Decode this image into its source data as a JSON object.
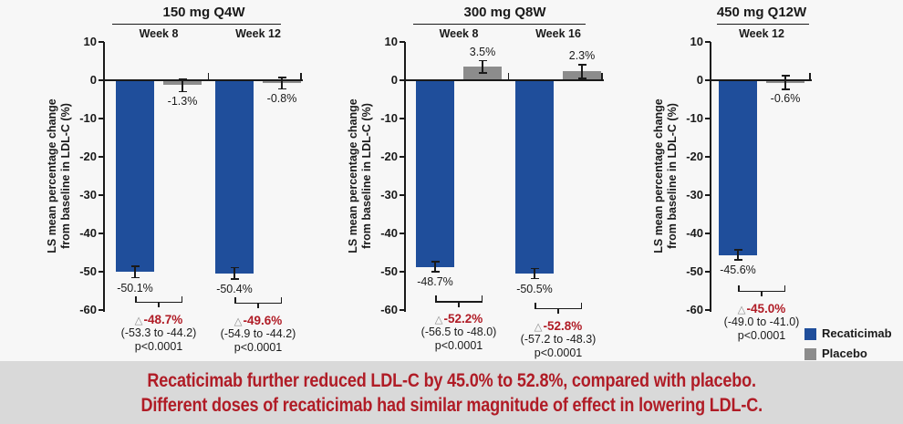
{
  "banner": {
    "line1": "Recaticimab further reduced LDL-C by 45.0% to 52.8%, compared with placebo.",
    "line2": "Different doses of recaticimab had similar magnitude of effect in lowering LDL-C."
  },
  "colors": {
    "recaticimab": "#1F4E9B",
    "placebo": "#8C8C8C",
    "delta_red": "#B01C26",
    "banner_bg": "#D9D9D9",
    "banner_text": "#B01C26",
    "axis": "#1A1A1A",
    "triangle_gray": "#8F8F8F",
    "background": "#F7F7F7"
  },
  "delta_prefix": "△",
  "chart_data": {
    "type": "bar",
    "ylabel": "LS mean percentage change from baseline in LDL-C (%)",
    "ylabel_lines": [
      "LS mean percentage change",
      "from baseline in LDL-C (%)"
    ],
    "unit": "%",
    "ylim": [
      -60,
      10
    ],
    "yticks": [
      10,
      0,
      -10,
      -20,
      -30,
      -40,
      -50,
      -60
    ],
    "grid": false,
    "legend": {
      "position": "bottom-right",
      "items": [
        {
          "label": "Recaticimab",
          "color": "#1F4E9B"
        },
        {
          "label": "Placebo",
          "color": "#8C8C8C"
        }
      ]
    },
    "panels": [
      {
        "title": "150 mg Q4W",
        "categories": [
          "Week 8",
          "Week 12"
        ],
        "series": [
          {
            "name": "Recaticimab",
            "values": [
              -50.1,
              -50.4
            ],
            "labels": [
              "-50.1%",
              "-50.4%"
            ],
            "errors": [
              1.5,
              1.5
            ]
          },
          {
            "name": "Placebo",
            "values": [
              -1.3,
              -0.8
            ],
            "labels": [
              "-1.3%",
              "-0.8%"
            ],
            "errors": [
              1.7,
              1.5
            ]
          }
        ],
        "comparisons": [
          {
            "delta": "-48.7%",
            "ci": "(-53.3 to -44.2)",
            "p": "p<0.0001"
          },
          {
            "delta": "-49.6%",
            "ci": "(-54.9 to -44.2)",
            "p": "p<0.0001"
          }
        ]
      },
      {
        "title": "300 mg Q8W",
        "categories": [
          "Week 8",
          "Week 16"
        ],
        "series": [
          {
            "name": "Recaticimab",
            "values": [
              -48.7,
              -50.5
            ],
            "labels": [
              "-48.7%",
              "-50.5%"
            ],
            "errors": [
              1.3,
              1.3
            ]
          },
          {
            "name": "Placebo",
            "values": [
              3.5,
              2.3
            ],
            "labels": [
              "3.5%",
              "2.3%"
            ],
            "errors": [
              1.6,
              1.8
            ]
          }
        ],
        "comparisons": [
          {
            "delta": "-52.2%",
            "ci": "(-56.5 to -48.0)",
            "p": "p<0.0001"
          },
          {
            "delta": "-52.8%",
            "ci": "(-57.2 to -48.3)",
            "p": "p<0.0001"
          }
        ]
      },
      {
        "title": "450 mg Q12W",
        "categories": [
          "Week 12"
        ],
        "series": [
          {
            "name": "Recaticimab",
            "values": [
              -45.6
            ],
            "labels": [
              "-45.6%"
            ],
            "errors": [
              1.3
            ]
          },
          {
            "name": "Placebo",
            "values": [
              -0.6
            ],
            "labels": [
              "-0.6%"
            ],
            "errors": [
              1.8
            ]
          }
        ],
        "comparisons": [
          {
            "delta": "-45.0%",
            "ci": "(-49.0 to -41.0)",
            "p": "p<0.0001"
          }
        ]
      }
    ]
  }
}
